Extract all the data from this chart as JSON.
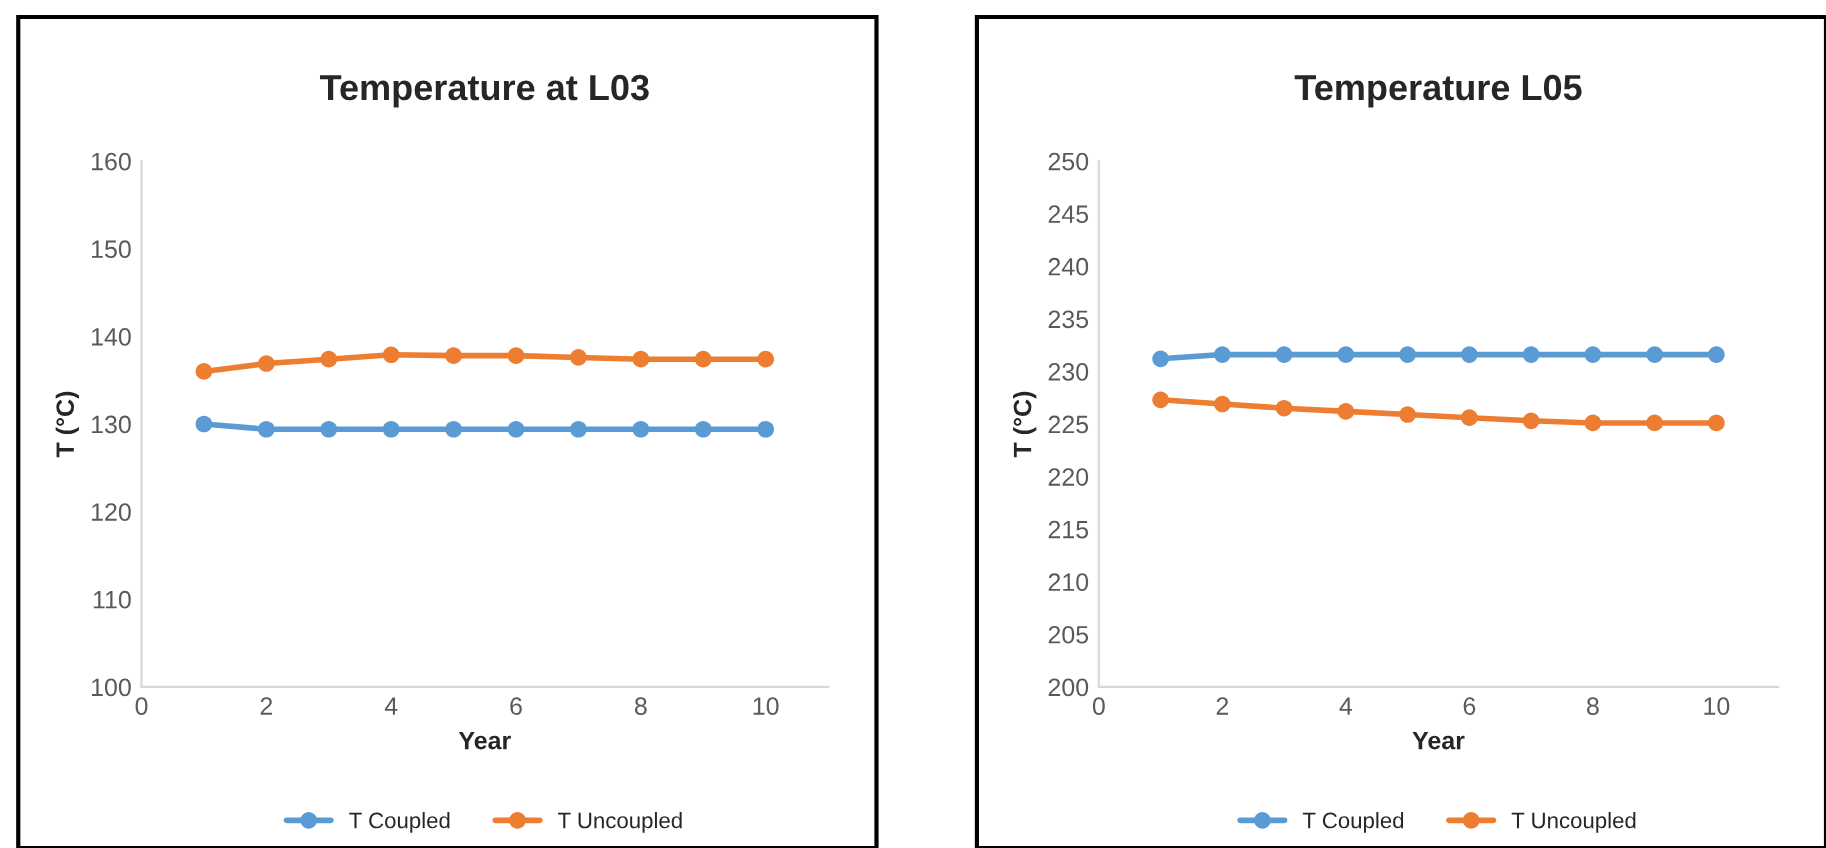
{
  "chart_data": [
    {
      "type": "line",
      "title": "Temperature at L03",
      "xlabel": "Year",
      "ylabel": "T (°C)",
      "x": [
        1,
        2,
        3,
        4,
        5,
        6,
        7,
        8,
        9,
        10
      ],
      "series": [
        {
          "name": "T Coupled",
          "color": "#5b9bd5",
          "values": [
            130.0,
            129.4,
            129.4,
            129.4,
            129.4,
            129.4,
            129.4,
            129.4,
            129.4,
            129.4
          ]
        },
        {
          "name": "T Uncoupled",
          "color": "#ed7d31",
          "values": [
            136.0,
            136.9,
            137.4,
            137.9,
            137.8,
            137.8,
            137.6,
            137.4,
            137.4,
            137.4
          ]
        }
      ],
      "xlim": [
        0,
        11
      ],
      "xticks": [
        0,
        2,
        4,
        6,
        8,
        10
      ],
      "ylim": [
        100,
        160
      ],
      "yticks": [
        100,
        110,
        120,
        130,
        140,
        150,
        160
      ],
      "grid": false,
      "legend": "bottom",
      "marker": "circle",
      "line_style": "solid"
    },
    {
      "type": "line",
      "title": "Temperature L05",
      "xlabel": "Year",
      "ylabel": "T (°C)",
      "x": [
        1,
        2,
        3,
        4,
        5,
        6,
        7,
        8,
        9,
        10
      ],
      "series": [
        {
          "name": "T Coupled",
          "color": "#5b9bd5",
          "values": [
            231.2,
            231.6,
            231.6,
            231.6,
            231.6,
            231.6,
            231.6,
            231.6,
            231.6,
            231.6
          ]
        },
        {
          "name": "T Uncoupled",
          "color": "#ed7d31",
          "values": [
            227.3,
            226.9,
            226.5,
            226.2,
            225.9,
            225.6,
            225.3,
            225.1,
            225.1,
            225.1
          ]
        }
      ],
      "xlim": [
        0,
        11
      ],
      "xticks": [
        0,
        2,
        4,
        6,
        8,
        10
      ],
      "ylim": [
        200,
        250
      ],
      "yticks": [
        200,
        205,
        210,
        215,
        220,
        225,
        230,
        235,
        240,
        245,
        250
      ],
      "grid": false,
      "legend": "bottom",
      "marker": "circle",
      "line_style": "solid"
    }
  ]
}
